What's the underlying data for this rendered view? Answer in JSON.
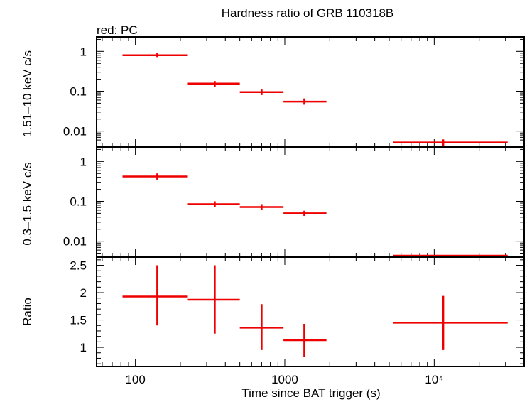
{
  "chart_data": {
    "title": "Hardness ratio of GRB 110318B",
    "subtitle": "red: PC",
    "type": "scatter",
    "xlabel": "Time since BAT trigger (s)",
    "xscale": "log",
    "xlim": [
      55,
      40000
    ],
    "x_tick_labels": [
      {
        "value": 100,
        "label": "100"
      },
      {
        "value": 1000,
        "label": "1000"
      },
      {
        "value": 10000,
        "label": "10⁴"
      }
    ],
    "series_color": "#ee0000",
    "panels": [
      {
        "id": "hard",
        "ylabel": "1.51–10 keV c/s",
        "yscale": "log",
        "ylim": [
          0.004,
          2.3
        ],
        "y_tick_labels": [
          {
            "value": 1,
            "label": "1"
          },
          {
            "value": 0.1,
            "label": "0.1"
          },
          {
            "value": 0.01,
            "label": "0.01"
          }
        ],
        "points": [
          {
            "x": 140,
            "xlo": 82,
            "xhi": 222,
            "y": 0.8,
            "ylo": 0.72,
            "yhi": 0.9
          },
          {
            "x": 340,
            "xlo": 222,
            "xhi": 500,
            "y": 0.155,
            "ylo": 0.13,
            "yhi": 0.18
          },
          {
            "x": 700,
            "xlo": 500,
            "xhi": 980,
            "y": 0.095,
            "ylo": 0.08,
            "yhi": 0.112
          },
          {
            "x": 1350,
            "xlo": 980,
            "xhi": 1900,
            "y": 0.055,
            "ylo": 0.046,
            "yhi": 0.066
          },
          {
            "x": 11500,
            "xlo": 5300,
            "xhi": 31000,
            "y": 0.0052,
            "ylo": 0.0043,
            "yhi": 0.0062
          }
        ]
      },
      {
        "id": "soft",
        "ylabel": "0.3–1.5 keV c/s",
        "yscale": "log",
        "ylim": [
          0.004,
          2.3
        ],
        "y_tick_labels": [
          {
            "value": 1,
            "label": "1"
          },
          {
            "value": 0.1,
            "label": "0.1"
          },
          {
            "value": 0.01,
            "label": "0.01"
          }
        ],
        "points": [
          {
            "x": 140,
            "xlo": 82,
            "xhi": 222,
            "y": 0.42,
            "ylo": 0.35,
            "yhi": 0.5
          },
          {
            "x": 340,
            "xlo": 222,
            "xhi": 500,
            "y": 0.085,
            "ylo": 0.071,
            "yhi": 0.1
          },
          {
            "x": 700,
            "xlo": 500,
            "xhi": 980,
            "y": 0.072,
            "ylo": 0.061,
            "yhi": 0.085
          },
          {
            "x": 1350,
            "xlo": 980,
            "xhi": 1900,
            "y": 0.05,
            "ylo": 0.043,
            "yhi": 0.058
          },
          {
            "x": 11500,
            "xlo": 5300,
            "xhi": 31000,
            "y": 0.0036,
            "ylo": 0.0031,
            "yhi": 0.0042
          }
        ]
      },
      {
        "id": "ratio",
        "ylabel": "Ratio",
        "yscale": "linear",
        "ylim": [
          0.65,
          2.65
        ],
        "y_tick_labels": [
          {
            "value": 1,
            "label": "1"
          },
          {
            "value": 1.5,
            "label": "1.5"
          },
          {
            "value": 2,
            "label": "2"
          },
          {
            "value": 2.5,
            "label": "2.5"
          }
        ],
        "points": [
          {
            "x": 140,
            "xlo": 82,
            "xhi": 222,
            "y": 1.93,
            "ylo": 1.4,
            "yhi": 2.5
          },
          {
            "x": 340,
            "xlo": 222,
            "xhi": 500,
            "y": 1.87,
            "ylo": 1.25,
            "yhi": 2.5
          },
          {
            "x": 700,
            "xlo": 500,
            "xhi": 980,
            "y": 1.36,
            "ylo": 0.95,
            "yhi": 1.79
          },
          {
            "x": 1350,
            "xlo": 980,
            "xhi": 1900,
            "y": 1.13,
            "ylo": 0.82,
            "yhi": 1.43
          },
          {
            "x": 11500,
            "xlo": 5300,
            "xhi": 31000,
            "y": 1.45,
            "ylo": 0.95,
            "yhi": 1.94
          }
        ]
      }
    ]
  }
}
